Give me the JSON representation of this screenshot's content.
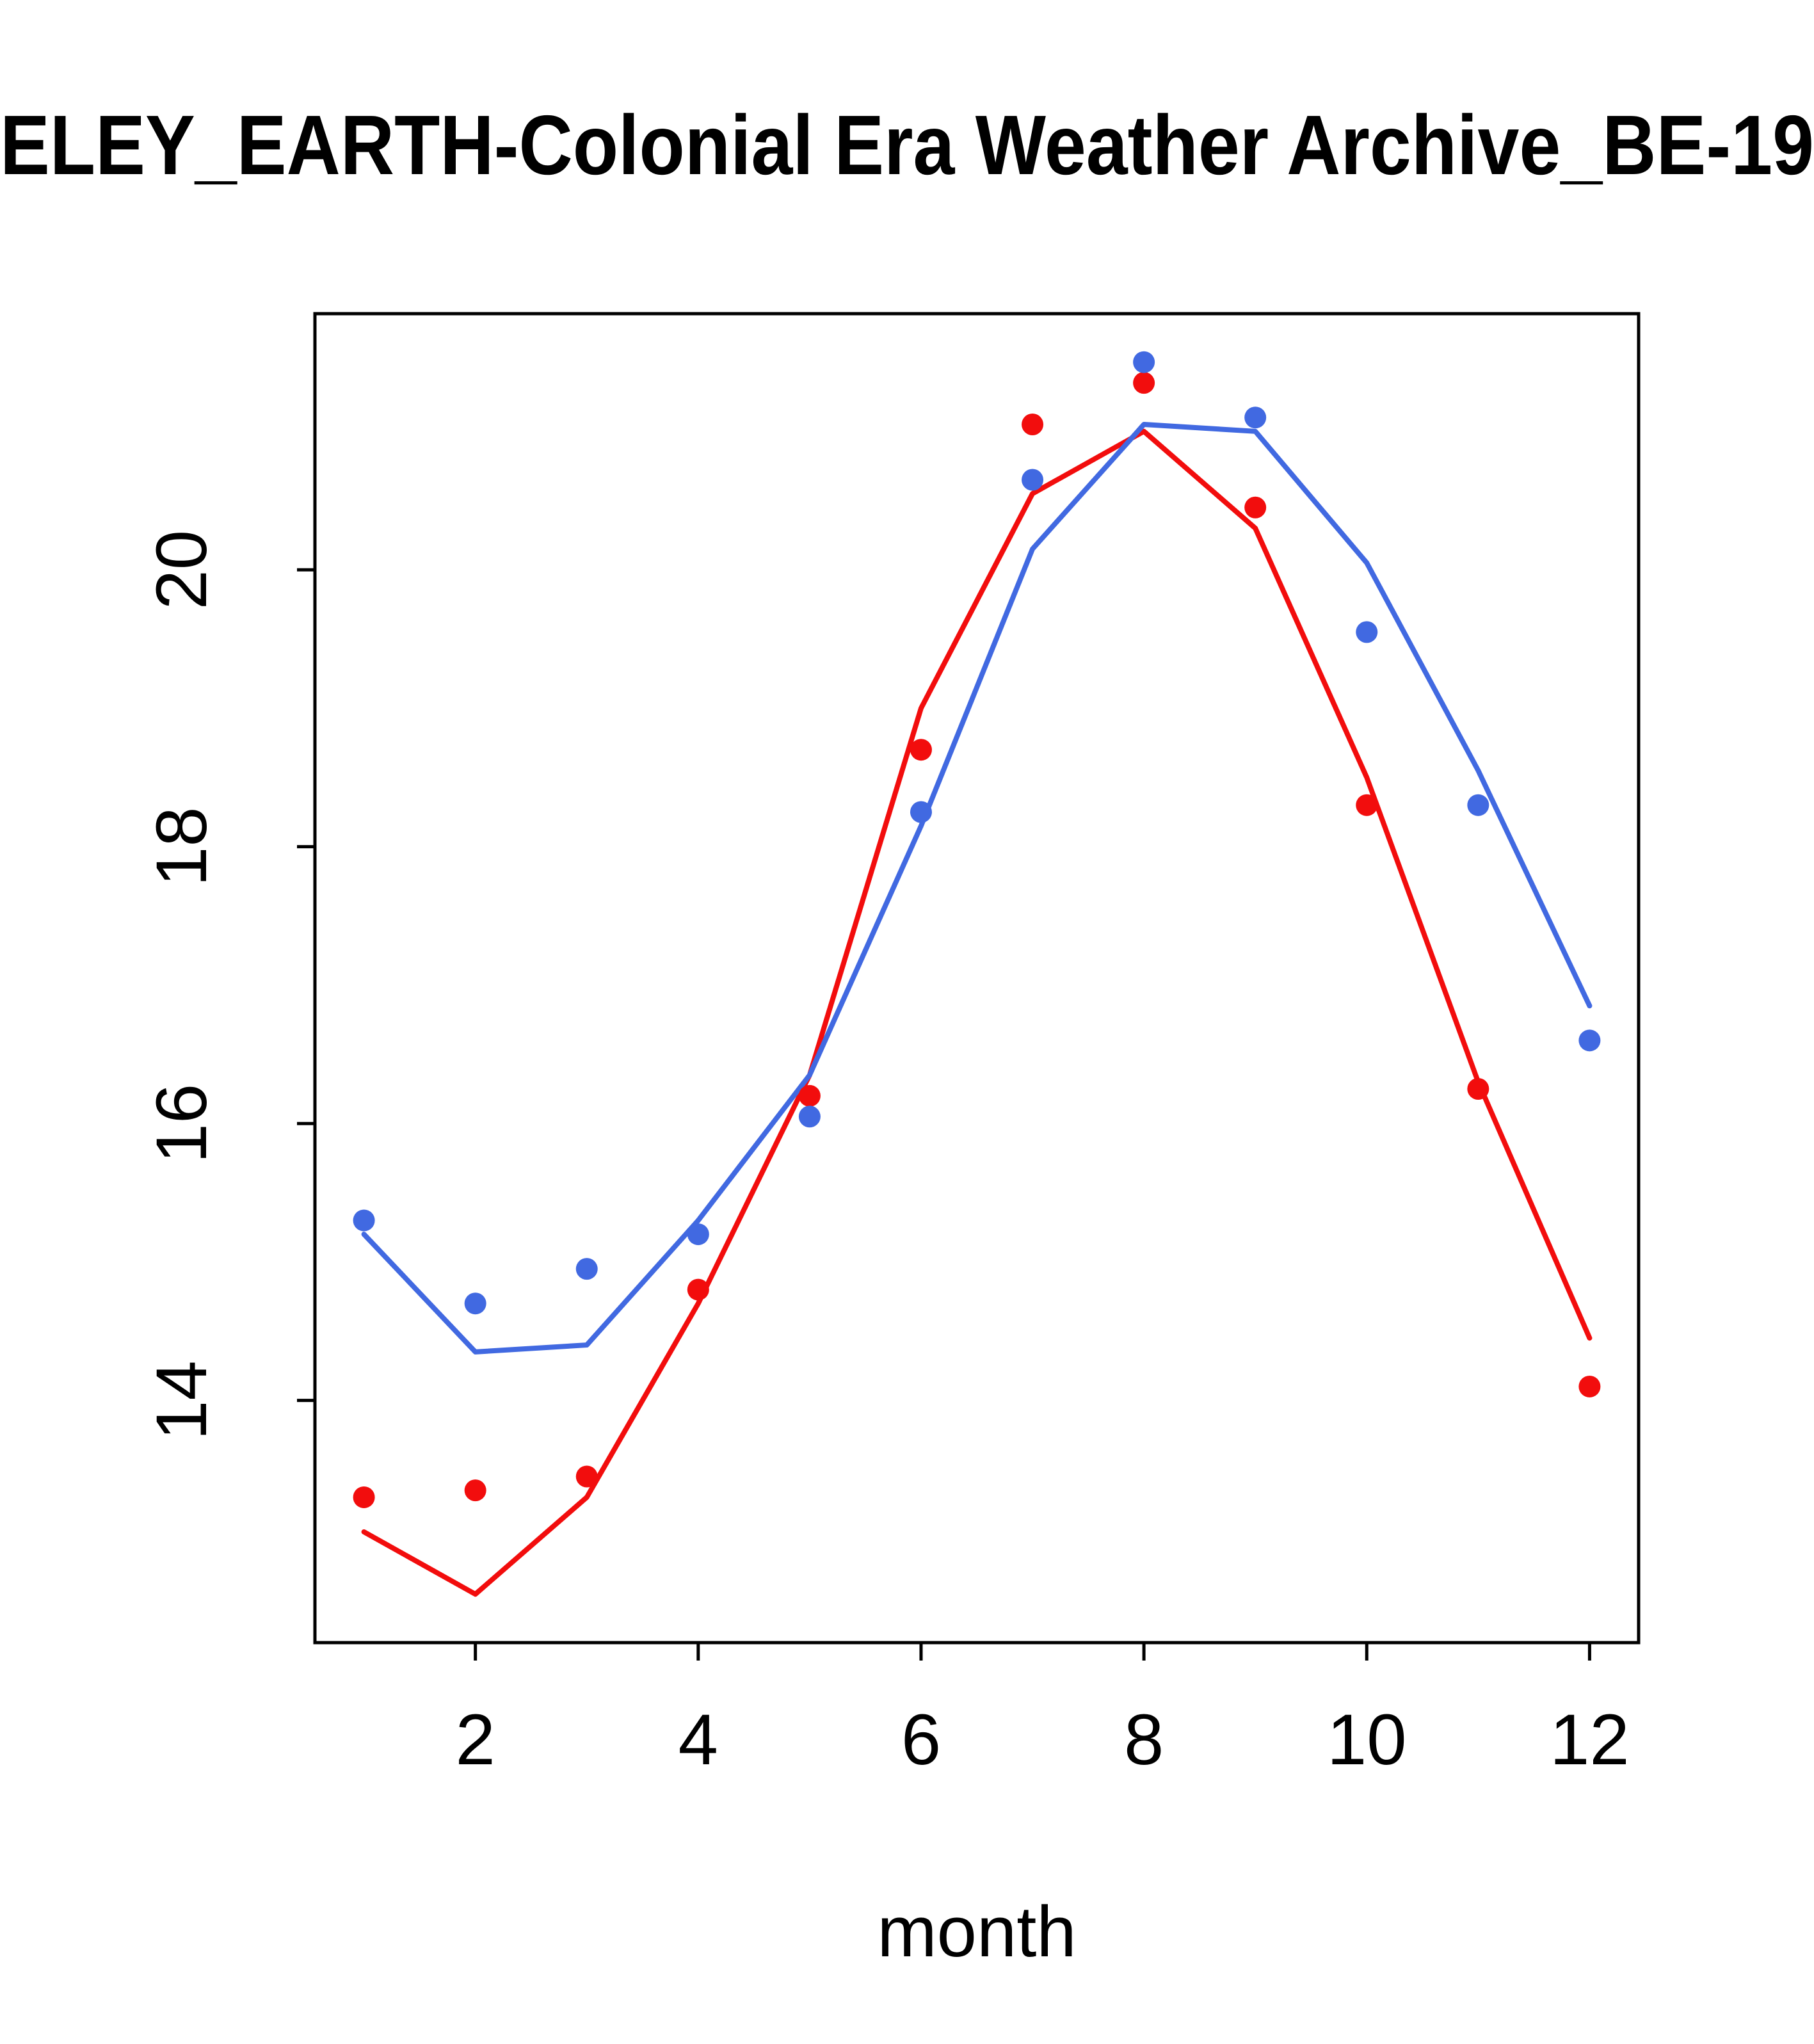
{
  "chart_data": {
    "type": "scatter",
    "title": "ELEY_EARTH-Colonial Era Weather Archive_BE-19",
    "title_truncated": true,
    "xlabel": "month",
    "ylabel": "",
    "xlim": [
      0.56,
      12.44
    ],
    "ylim": [
      12.25,
      21.85
    ],
    "xticks": [
      2,
      4,
      6,
      8,
      10,
      12
    ],
    "yticks": [
      14,
      16,
      18,
      20
    ],
    "grid": false,
    "legend": "none",
    "colors": {
      "series_blue": "#4169e1",
      "series_red": "#f20d0d",
      "axis": "#000000",
      "background": "#ffffff"
    },
    "x_months": [
      1,
      2,
      3,
      4,
      5,
      6,
      7,
      8,
      9,
      10,
      11,
      12
    ],
    "series": [
      {
        "name": "red-trend-line",
        "kind": "line",
        "color": "#f20d0d",
        "x": [
          1,
          2,
          3,
          4,
          5,
          6,
          7,
          8,
          9,
          10,
          11,
          12
        ],
        "y": [
          13.05,
          12.6,
          13.3,
          14.7,
          16.35,
          19.0,
          20.55,
          21.0,
          20.3,
          18.5,
          16.3,
          14.45
        ]
      },
      {
        "name": "blue-trend-line",
        "kind": "line",
        "color": "#4169e1",
        "x": [
          1,
          2,
          3,
          4,
          5,
          6,
          7,
          8,
          9,
          10,
          11,
          12
        ],
        "y": [
          15.2,
          14.35,
          14.4,
          15.3,
          16.35,
          18.15,
          20.15,
          21.05,
          21.0,
          20.05,
          18.55,
          16.85
        ]
      },
      {
        "name": "red-points",
        "kind": "points",
        "color": "#f20d0d",
        "x": [
          1,
          2,
          3,
          4,
          5,
          6,
          7,
          8,
          9,
          10,
          11,
          12
        ],
        "y": [
          13.3,
          13.35,
          13.45,
          14.8,
          16.2,
          18.7,
          21.05,
          21.35,
          20.45,
          18.3,
          16.25,
          14.1
        ]
      },
      {
        "name": "blue-points",
        "kind": "points",
        "color": "#4169e1",
        "x": [
          1,
          2,
          3,
          4,
          5,
          6,
          7,
          8,
          9,
          10,
          11,
          12
        ],
        "y": [
          15.3,
          14.7,
          14.95,
          15.2,
          16.05,
          18.25,
          20.65,
          21.5,
          21.1,
          19.55,
          18.3,
          16.6
        ]
      }
    ]
  }
}
